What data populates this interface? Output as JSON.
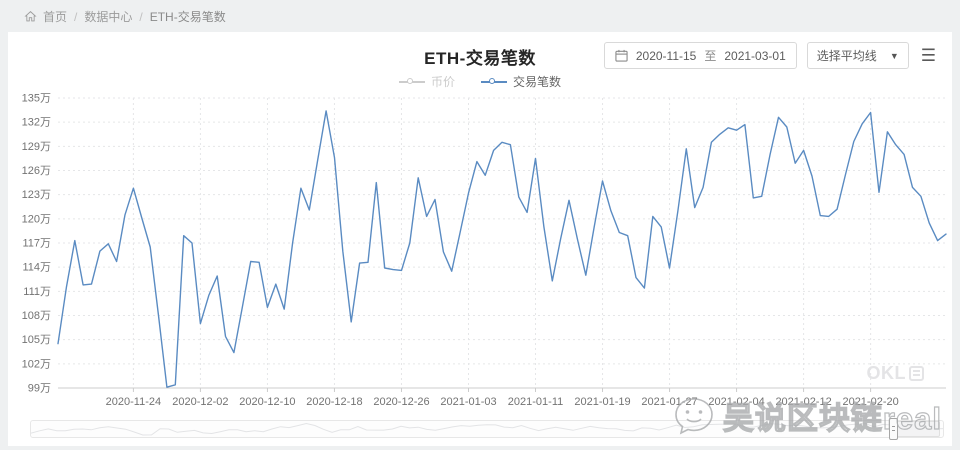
{
  "breadcrumb": {
    "separator": "/",
    "items": [
      {
        "label": "首页",
        "current": false
      },
      {
        "label": "数据中心",
        "current": false
      },
      {
        "label": "ETH-交易笔数",
        "current": true
      }
    ]
  },
  "header": {
    "title": "ETH-交易笔数",
    "date_from": "2020-11-15",
    "date_sep": "至",
    "date_to": "2021-03-01",
    "avg_select_label": "选择平均线",
    "avg_select_arrow": "▼",
    "menu_icon": "☰"
  },
  "legend": {
    "items": [
      {
        "label": "币价",
        "active": false,
        "color": "#cccccc",
        "text_color": "#cccccc"
      },
      {
        "label": "交易笔数",
        "active": true,
        "color": "#5a8bc2",
        "text_color": "#666666"
      }
    ]
  },
  "colors": {
    "line": "#5a8bc2",
    "grid": "#e5e6e8",
    "axis": "#cccccc",
    "axis_text": "#737373",
    "disabled": "#cccccc"
  },
  "chart_data": {
    "type": "line",
    "title": "ETH-交易笔数",
    "xlabel": "",
    "ylabel": "",
    "unit": "万",
    "ylim": [
      99,
      135
    ],
    "y_tick_step": 3,
    "y_tick_labels": [
      "99万",
      "102万",
      "105万",
      "108万",
      "111万",
      "114万",
      "117万",
      "120万",
      "123万",
      "126万",
      "129万",
      "132万",
      "135万"
    ],
    "x_tick_labels": [
      "2020-11-24",
      "2020-12-02",
      "2020-12-10",
      "2020-12-18",
      "2020-12-26",
      "2021-01-03",
      "2021-01-11",
      "2021-01-19",
      "2021-01-27",
      "2021-02-04",
      "2021-02-12",
      "2021-02-20"
    ],
    "x_tick_indices": [
      9,
      17,
      25,
      33,
      41,
      49,
      57,
      65,
      73,
      81,
      89,
      97
    ],
    "grid": true,
    "legend_position": "top",
    "x": [
      "2020-11-15",
      "2020-11-16",
      "2020-11-17",
      "2020-11-18",
      "2020-11-19",
      "2020-11-20",
      "2020-11-21",
      "2020-11-22",
      "2020-11-23",
      "2020-11-24",
      "2020-11-25",
      "2020-11-26",
      "2020-11-27",
      "2020-11-28",
      "2020-11-29",
      "2020-11-30",
      "2020-12-01",
      "2020-12-02",
      "2020-12-03",
      "2020-12-04",
      "2020-12-05",
      "2020-12-06",
      "2020-12-07",
      "2020-12-08",
      "2020-12-09",
      "2020-12-10",
      "2020-12-11",
      "2020-12-12",
      "2020-12-13",
      "2020-12-14",
      "2020-12-15",
      "2020-12-16",
      "2020-12-17",
      "2020-12-18",
      "2020-12-19",
      "2020-12-20",
      "2020-12-21",
      "2020-12-22",
      "2020-12-23",
      "2020-12-24",
      "2020-12-25",
      "2020-12-26",
      "2020-12-27",
      "2020-12-28",
      "2020-12-29",
      "2020-12-30",
      "2020-12-31",
      "2021-01-01",
      "2021-01-02",
      "2021-01-03",
      "2021-01-04",
      "2021-01-05",
      "2021-01-06",
      "2021-01-07",
      "2021-01-08",
      "2021-01-09",
      "2021-01-10",
      "2021-01-11",
      "2021-01-12",
      "2021-01-13",
      "2021-01-14",
      "2021-01-15",
      "2021-01-16",
      "2021-01-17",
      "2021-01-18",
      "2021-01-19",
      "2021-01-20",
      "2021-01-21",
      "2021-01-22",
      "2021-01-23",
      "2021-01-24",
      "2021-01-25",
      "2021-01-26",
      "2021-01-27",
      "2021-01-28",
      "2021-01-29",
      "2021-01-30",
      "2021-01-31",
      "2021-02-01",
      "2021-02-02",
      "2021-02-03",
      "2021-02-04",
      "2021-02-05",
      "2021-02-06",
      "2021-02-07",
      "2021-02-08",
      "2021-02-09",
      "2021-02-10",
      "2021-02-11",
      "2021-02-12",
      "2021-02-13",
      "2021-02-14",
      "2021-02-15",
      "2021-02-16",
      "2021-02-17",
      "2021-02-18",
      "2021-02-19",
      "2021-02-20",
      "2021-02-21",
      "2021-02-22",
      "2021-02-23",
      "2021-02-24",
      "2021-02-25",
      "2021-02-26",
      "2021-02-27",
      "2021-02-28",
      "2021-03-01"
    ],
    "series": [
      {
        "name": "交易笔数",
        "color": "#5a8bc2",
        "unit": "万",
        "values": [
          104.5,
          111.5,
          117.3,
          111.8,
          111.9,
          116.0,
          116.9,
          114.7,
          120.5,
          123.8,
          120.1,
          116.5,
          108.0,
          99.1,
          99.4,
          117.9,
          117.0,
          107.0,
          110.5,
          112.9,
          105.4,
          103.4,
          109.0,
          114.7,
          114.6,
          109.0,
          111.9,
          108.8,
          117.0,
          123.8,
          121.1,
          127.3,
          133.4,
          127.6,
          116.0,
          107.2,
          114.5,
          114.6,
          124.5,
          113.9,
          113.7,
          113.6,
          117.0,
          125.1,
          120.3,
          122.4,
          115.9,
          113.5,
          118.3,
          123.2,
          127.1,
          125.4,
          128.5,
          129.5,
          129.2,
          122.7,
          120.8,
          127.5,
          119.0,
          112.3,
          117.5,
          122.3,
          117.5,
          113.0,
          119.0,
          124.7,
          121.0,
          118.3,
          117.9,
          112.7,
          111.4,
          120.3,
          119.0,
          113.9,
          121.0,
          128.7,
          121.4,
          123.9,
          129.5,
          130.5,
          131.3,
          131.0,
          131.7,
          122.6,
          122.8,
          128.0,
          132.6,
          131.4,
          126.9,
          128.5,
          125.3,
          120.4,
          120.3,
          121.2,
          125.5,
          129.6,
          131.8,
          133.2,
          123.3,
          130.8,
          129.2,
          128.0,
          123.9,
          122.8,
          119.5,
          117.3,
          118.1
        ]
      },
      {
        "name": "币价",
        "color": "#cccccc",
        "visible": false,
        "values": []
      }
    ]
  },
  "watermarks": {
    "chart_logo_text": "OKL",
    "overlay_text": "吴说区块链real"
  }
}
